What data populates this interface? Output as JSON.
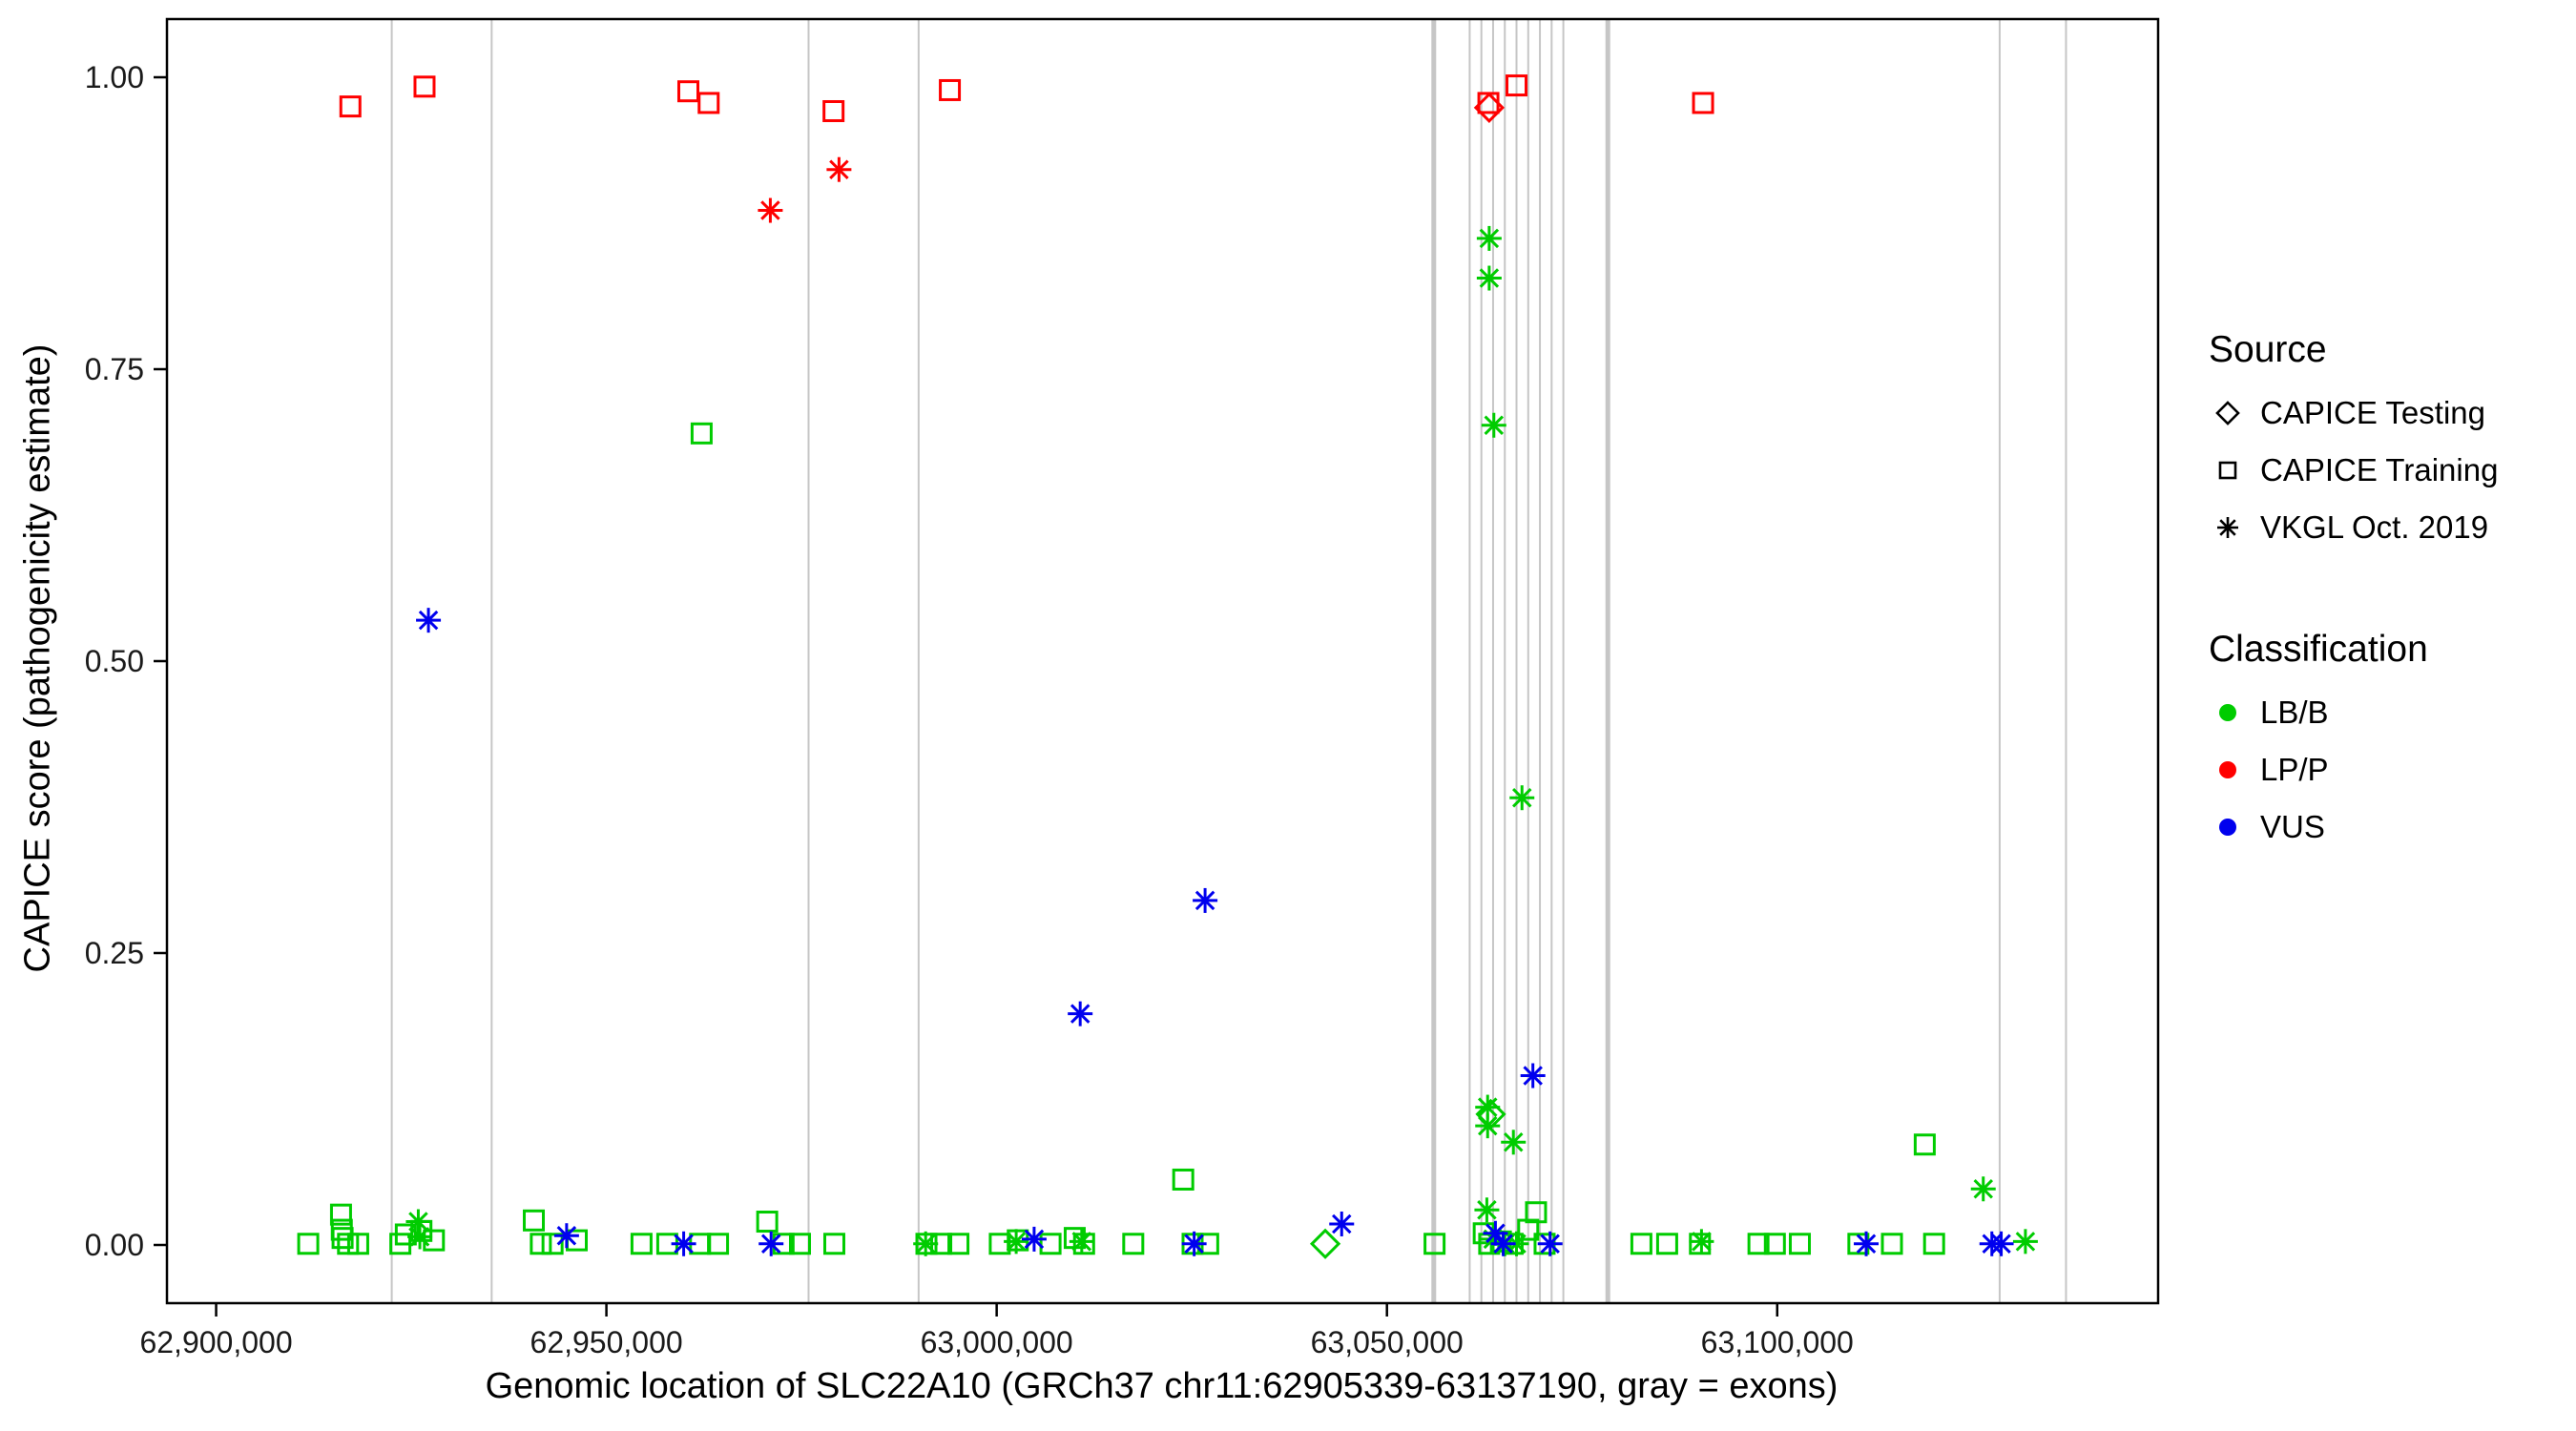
{
  "figure": {
    "x_axis_label": "Genomic location of SLC22A10 (GRCh37 chr11:62905339-63137190, gray = exons)",
    "y_axis_label": "CAPICE score (pathogenicity estimate)"
  },
  "legend": {
    "source": {
      "title": "Source",
      "items": [
        {
          "label": "CAPICE Testing",
          "shape": "diamond"
        },
        {
          "label": "CAPICE Training",
          "shape": "square"
        },
        {
          "label": "VKGL Oct. 2019",
          "shape": "asterisk"
        }
      ]
    },
    "classification": {
      "title": "Classification",
      "items": [
        {
          "label": "LB/B",
          "color": "#00CC00"
        },
        {
          "label": "LP/P",
          "color": "#FF0000"
        },
        {
          "label": "VUS",
          "color": "#0000EE"
        }
      ]
    }
  },
  "chart_data": {
    "type": "scatter",
    "title": "",
    "xlabel": "Genomic location of SLC22A10 (GRCh37 chr11:62905339-63137190, gray = exons)",
    "ylabel": "CAPICE score (pathogenicity estimate)",
    "xlim": [
      62893700,
      63148800
    ],
    "ylim": [
      0,
      1
    ],
    "grid": false,
    "legend_position": "right",
    "x_ticks": [
      {
        "value": 62900000,
        "label": "62,900,000"
      },
      {
        "value": 62950000,
        "label": "62,950,000"
      },
      {
        "value": 63000000,
        "label": "63,000,000"
      },
      {
        "value": 63050000,
        "label": "63,050,000"
      },
      {
        "value": 63100000,
        "label": "63,100,000"
      }
    ],
    "y_ticks": [
      {
        "value": 0.0,
        "label": "0.00"
      },
      {
        "value": 0.25,
        "label": "0.25"
      },
      {
        "value": 0.5,
        "label": "0.50"
      },
      {
        "value": 0.75,
        "label": "0.75"
      },
      {
        "value": 1.0,
        "label": "1.00"
      }
    ],
    "exon_color": "#C6C6C6",
    "exons": [
      {
        "x": 62922500,
        "w": 2
      },
      {
        "x": 62935300,
        "w": 2
      },
      {
        "x": 62975900,
        "w": 2
      },
      {
        "x": 62990000,
        "w": 2
      },
      {
        "x": 63056000,
        "w": 5
      },
      {
        "x": 63060600,
        "w": 2
      },
      {
        "x": 63062100,
        "w": 2
      },
      {
        "x": 63063600,
        "w": 2
      },
      {
        "x": 63065100,
        "w": 2
      },
      {
        "x": 63066600,
        "w": 2
      },
      {
        "x": 63068100,
        "w": 2
      },
      {
        "x": 63069600,
        "w": 2
      },
      {
        "x": 63071100,
        "w": 2
      },
      {
        "x": 63072600,
        "w": 2
      },
      {
        "x": 63078300,
        "w": 5
      },
      {
        "x": 63128500,
        "w": 2
      },
      {
        "x": 63137000,
        "w": 2
      }
    ],
    "colors": {
      "LB/B": "#00CC00",
      "LP/P": "#FF0000",
      "VUS": "#0000EE"
    },
    "shapes": {
      "testing": "diamond",
      "training": "square",
      "vkgl": "asterisk"
    },
    "source_labels": {
      "testing": "CAPICE Testing",
      "training": "CAPICE Training",
      "vkgl": "VKGL Oct. 2019"
    },
    "points": [
      {
        "x": 62917200,
        "y": 0.975,
        "source": "training",
        "cls": "LP/P"
      },
      {
        "x": 62926700,
        "y": 0.992,
        "source": "training",
        "cls": "LP/P"
      },
      {
        "x": 62960500,
        "y": 0.988,
        "source": "training",
        "cls": "LP/P"
      },
      {
        "x": 62963100,
        "y": 0.978,
        "source": "training",
        "cls": "LP/P"
      },
      {
        "x": 62979100,
        "y": 0.971,
        "source": "training",
        "cls": "LP/P"
      },
      {
        "x": 62994000,
        "y": 0.989,
        "source": "training",
        "cls": "LP/P"
      },
      {
        "x": 63063000,
        "y": 0.978,
        "source": "training",
        "cls": "LP/P"
      },
      {
        "x": 63066600,
        "y": 0.993,
        "source": "training",
        "cls": "LP/P"
      },
      {
        "x": 63090500,
        "y": 0.978,
        "source": "training",
        "cls": "LP/P"
      },
      {
        "x": 63063100,
        "y": 0.974,
        "source": "testing",
        "cls": "LP/P"
      },
      {
        "x": 62971000,
        "y": 0.886,
        "source": "vkgl",
        "cls": "LP/P"
      },
      {
        "x": 62979800,
        "y": 0.921,
        "source": "vkgl",
        "cls": "LP/P"
      },
      {
        "x": 62962200,
        "y": 0.695,
        "source": "training",
        "cls": "LB/B"
      },
      {
        "x": 63063100,
        "y": 0.862,
        "source": "vkgl",
        "cls": "LB/B"
      },
      {
        "x": 63063100,
        "y": 0.828,
        "source": "vkgl",
        "cls": "LB/B"
      },
      {
        "x": 63063700,
        "y": 0.702,
        "source": "vkgl",
        "cls": "LB/B"
      },
      {
        "x": 63067300,
        "y": 0.383,
        "source": "vkgl",
        "cls": "LB/B"
      },
      {
        "x": 63062900,
        "y": 0.118,
        "source": "vkgl",
        "cls": "LB/B"
      },
      {
        "x": 63062900,
        "y": 0.102,
        "source": "vkgl",
        "cls": "LB/B"
      },
      {
        "x": 63066200,
        "y": 0.088,
        "source": "vkgl",
        "cls": "LB/B"
      },
      {
        "x": 63063300,
        "y": 0.112,
        "source": "testing",
        "cls": "LB/B"
      },
      {
        "x": 62927200,
        "y": 0.535,
        "source": "vkgl",
        "cls": "VUS"
      },
      {
        "x": 63010700,
        "y": 0.198,
        "source": "vkgl",
        "cls": "VUS"
      },
      {
        "x": 63026700,
        "y": 0.295,
        "source": "vkgl",
        "cls": "VUS"
      },
      {
        "x": 63068700,
        "y": 0.145,
        "source": "vkgl",
        "cls": "VUS"
      },
      {
        "x": 63044200,
        "y": 0.018,
        "source": "vkgl",
        "cls": "VUS"
      },
      {
        "x": 62911800,
        "y": 0.001,
        "source": "training",
        "cls": "LB/B"
      },
      {
        "x": 62916000,
        "y": 0.026,
        "source": "training",
        "cls": "LB/B"
      },
      {
        "x": 62916100,
        "y": 0.013,
        "source": "training",
        "cls": "LB/B"
      },
      {
        "x": 62916200,
        "y": 0.006,
        "source": "training",
        "cls": "LB/B"
      },
      {
        "x": 62916900,
        "y": 0.001,
        "source": "training",
        "cls": "LB/B"
      },
      {
        "x": 62918200,
        "y": 0.001,
        "source": "training",
        "cls": "LB/B"
      },
      {
        "x": 62923600,
        "y": 0.001,
        "source": "training",
        "cls": "LB/B"
      },
      {
        "x": 62924300,
        "y": 0.009,
        "source": "training",
        "cls": "LB/B"
      },
      {
        "x": 62926300,
        "y": 0.012,
        "source": "training",
        "cls": "LB/B"
      },
      {
        "x": 62927900,
        "y": 0.004,
        "source": "training",
        "cls": "LB/B"
      },
      {
        "x": 62940700,
        "y": 0.021,
        "source": "training",
        "cls": "LB/B"
      },
      {
        "x": 62941600,
        "y": 0.001,
        "source": "training",
        "cls": "LB/B"
      },
      {
        "x": 62943100,
        "y": 0.001,
        "source": "training",
        "cls": "LB/B"
      },
      {
        "x": 62946200,
        "y": 0.004,
        "source": "training",
        "cls": "LB/B"
      },
      {
        "x": 62954500,
        "y": 0.001,
        "source": "training",
        "cls": "LB/B"
      },
      {
        "x": 62957800,
        "y": 0.001,
        "source": "training",
        "cls": "LB/B"
      },
      {
        "x": 62962000,
        "y": 0.001,
        "source": "training",
        "cls": "LB/B"
      },
      {
        "x": 62964300,
        "y": 0.001,
        "source": "training",
        "cls": "LB/B"
      },
      {
        "x": 62970600,
        "y": 0.02,
        "source": "training",
        "cls": "LB/B"
      },
      {
        "x": 62972700,
        "y": 0.001,
        "source": "training",
        "cls": "LB/B"
      },
      {
        "x": 62974800,
        "y": 0.001,
        "source": "training",
        "cls": "LB/B"
      },
      {
        "x": 62979200,
        "y": 0.001,
        "source": "training",
        "cls": "LB/B"
      },
      {
        "x": 62991000,
        "y": 0.001,
        "source": "training",
        "cls": "LB/B"
      },
      {
        "x": 62992900,
        "y": 0.001,
        "source": "training",
        "cls": "LB/B"
      },
      {
        "x": 62995100,
        "y": 0.001,
        "source": "training",
        "cls": "LB/B"
      },
      {
        "x": 63000400,
        "y": 0.001,
        "source": "training",
        "cls": "LB/B"
      },
      {
        "x": 63002700,
        "y": 0.004,
        "source": "training",
        "cls": "LB/B"
      },
      {
        "x": 63006900,
        "y": 0.001,
        "source": "training",
        "cls": "LB/B"
      },
      {
        "x": 63010000,
        "y": 0.006,
        "source": "training",
        "cls": "LB/B"
      },
      {
        "x": 63011200,
        "y": 0.001,
        "source": "training",
        "cls": "LB/B"
      },
      {
        "x": 63017500,
        "y": 0.001,
        "source": "training",
        "cls": "LB/B"
      },
      {
        "x": 63023900,
        "y": 0.056,
        "source": "training",
        "cls": "LB/B"
      },
      {
        "x": 63025100,
        "y": 0.001,
        "source": "training",
        "cls": "LB/B"
      },
      {
        "x": 63027100,
        "y": 0.001,
        "source": "training",
        "cls": "LB/B"
      },
      {
        "x": 63056100,
        "y": 0.001,
        "source": "training",
        "cls": "LB/B"
      },
      {
        "x": 63062400,
        "y": 0.01,
        "source": "training",
        "cls": "LB/B"
      },
      {
        "x": 63063100,
        "y": 0.001,
        "source": "training",
        "cls": "LB/B"
      },
      {
        "x": 63064600,
        "y": 0.003,
        "source": "training",
        "cls": "LB/B"
      },
      {
        "x": 63066100,
        "y": 0.001,
        "source": "training",
        "cls": "LB/B"
      },
      {
        "x": 63068100,
        "y": 0.013,
        "source": "training",
        "cls": "LB/B"
      },
      {
        "x": 63069100,
        "y": 0.028,
        "source": "training",
        "cls": "LB/B"
      },
      {
        "x": 63070200,
        "y": 0.001,
        "source": "training",
        "cls": "LB/B"
      },
      {
        "x": 63082600,
        "y": 0.001,
        "source": "training",
        "cls": "LB/B"
      },
      {
        "x": 63085900,
        "y": 0.001,
        "source": "training",
        "cls": "LB/B"
      },
      {
        "x": 63090100,
        "y": 0.001,
        "source": "training",
        "cls": "LB/B"
      },
      {
        "x": 63097600,
        "y": 0.001,
        "source": "training",
        "cls": "LB/B"
      },
      {
        "x": 63099700,
        "y": 0.001,
        "source": "training",
        "cls": "LB/B"
      },
      {
        "x": 63102900,
        "y": 0.001,
        "source": "training",
        "cls": "LB/B"
      },
      {
        "x": 63110400,
        "y": 0.001,
        "source": "training",
        "cls": "LB/B"
      },
      {
        "x": 63114700,
        "y": 0.001,
        "source": "training",
        "cls": "LB/B"
      },
      {
        "x": 63118900,
        "y": 0.086,
        "source": "training",
        "cls": "LB/B"
      },
      {
        "x": 63120100,
        "y": 0.001,
        "source": "training",
        "cls": "LB/B"
      },
      {
        "x": 62925900,
        "y": 0.02,
        "source": "vkgl",
        "cls": "LB/B"
      },
      {
        "x": 62926100,
        "y": 0.007,
        "source": "vkgl",
        "cls": "LB/B"
      },
      {
        "x": 62990900,
        "y": 0.001,
        "source": "vkgl",
        "cls": "LB/B"
      },
      {
        "x": 63002500,
        "y": 0.003,
        "source": "vkgl",
        "cls": "LB/B"
      },
      {
        "x": 63010900,
        "y": 0.003,
        "source": "vkgl",
        "cls": "LB/B"
      },
      {
        "x": 63062800,
        "y": 0.03,
        "source": "vkgl",
        "cls": "LB/B"
      },
      {
        "x": 63063600,
        "y": 0.005,
        "source": "vkgl",
        "cls": "LB/B"
      },
      {
        "x": 63065100,
        "y": 0.001,
        "source": "vkgl",
        "cls": "LB/B"
      },
      {
        "x": 63066600,
        "y": 0.001,
        "source": "vkgl",
        "cls": "LB/B"
      },
      {
        "x": 63090300,
        "y": 0.003,
        "source": "vkgl",
        "cls": "LB/B"
      },
      {
        "x": 63126400,
        "y": 0.048,
        "source": "vkgl",
        "cls": "LB/B"
      },
      {
        "x": 63131800,
        "y": 0.003,
        "source": "vkgl",
        "cls": "LB/B"
      },
      {
        "x": 62944900,
        "y": 0.008,
        "source": "vkgl",
        "cls": "VUS"
      },
      {
        "x": 62959900,
        "y": 0.001,
        "source": "vkgl",
        "cls": "VUS"
      },
      {
        "x": 62971100,
        "y": 0.001,
        "source": "vkgl",
        "cls": "VUS"
      },
      {
        "x": 63004800,
        "y": 0.005,
        "source": "vkgl",
        "cls": "VUS"
      },
      {
        "x": 63025300,
        "y": 0.001,
        "source": "vkgl",
        "cls": "VUS"
      },
      {
        "x": 63063900,
        "y": 0.01,
        "source": "vkgl",
        "cls": "VUS"
      },
      {
        "x": 63064900,
        "y": 0.001,
        "source": "vkgl",
        "cls": "VUS"
      },
      {
        "x": 63070900,
        "y": 0.001,
        "source": "vkgl",
        "cls": "VUS"
      },
      {
        "x": 63111400,
        "y": 0.001,
        "source": "vkgl",
        "cls": "VUS"
      },
      {
        "x": 63127500,
        "y": 0.001,
        "source": "vkgl",
        "cls": "VUS"
      },
      {
        "x": 63128700,
        "y": 0.001,
        "source": "vkgl",
        "cls": "VUS"
      },
      {
        "x": 63042100,
        "y": 0.001,
        "source": "testing",
        "cls": "LB/B"
      }
    ]
  }
}
